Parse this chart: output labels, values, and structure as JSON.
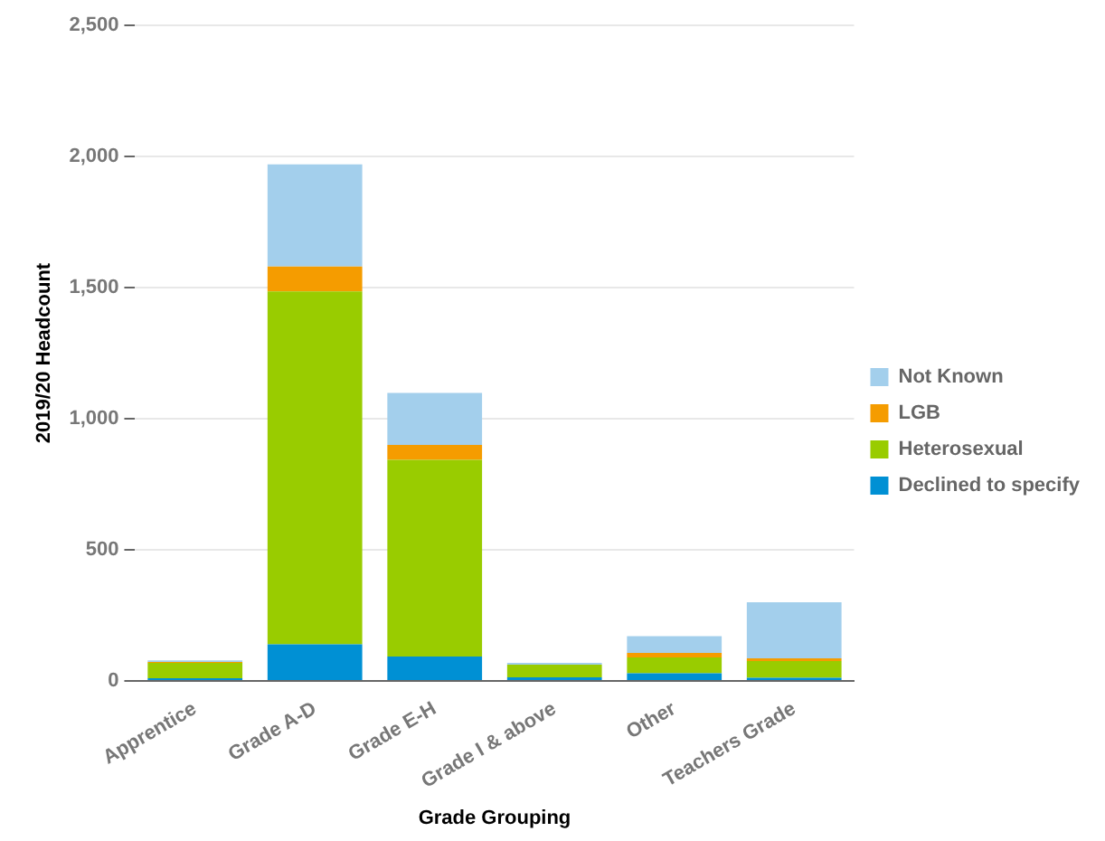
{
  "chart_data": {
    "type": "bar",
    "stacked": true,
    "xlabel": "Grade Grouping",
    "ylabel": "2019/20 Headcount",
    "categories": [
      "Apprentice",
      "Grade A-D",
      "Grade E-H",
      "Grade I & above",
      "Other",
      "Teachers Grade"
    ],
    "series": [
      {
        "name": "Declined to specify",
        "color": "#0090d4",
        "values": [
          10,
          140,
          93,
          14,
          29,
          12
        ]
      },
      {
        "name": "Heterosexual",
        "color": "#99cc00",
        "values": [
          59,
          1345,
          750,
          48,
          61,
          64
        ]
      },
      {
        "name": "LGB",
        "color": "#f59c00",
        "values": [
          3,
          95,
          57,
          0,
          17,
          10
        ]
      },
      {
        "name": "Not Known",
        "color": "#a3cfec",
        "values": [
          6,
          390,
          198,
          7,
          64,
          214
        ]
      }
    ],
    "ylim": [
      0,
      2500
    ],
    "yticks": [
      0,
      {
        "value": 500,
        "label": "500"
      },
      {
        "value": 1000,
        "label": "1,000"
      },
      {
        "value": 1500,
        "label": "1,500"
      },
      {
        "value": 2000,
        "label": "2,000"
      },
      {
        "value": 2500,
        "label": "2,500"
      }
    ],
    "grid": "y",
    "legend": "right"
  }
}
